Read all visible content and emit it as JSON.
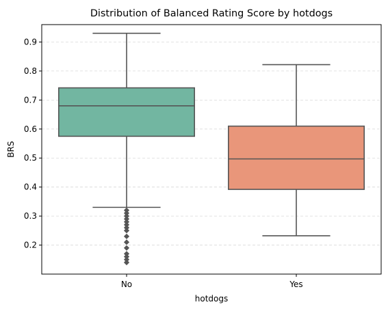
{
  "chart_data": {
    "type": "box",
    "title": "Distribution of Balanced Rating Score by hotdogs",
    "xlabel": "hotdogs",
    "ylabel": "BRS",
    "categories": [
      "No",
      "Yes"
    ],
    "ylim": [
      0.1,
      0.96
    ],
    "yticks": [
      0.2,
      0.3,
      0.4,
      0.5,
      0.6,
      0.7,
      0.8,
      0.9
    ],
    "ytick_labels": [
      "0.2",
      "0.3",
      "0.4",
      "0.5",
      "0.6",
      "0.7",
      "0.8",
      "0.9"
    ],
    "grid": "horizontal dashed",
    "boxes": [
      {
        "category": "No",
        "color": "#72b6a1",
        "whisker_low": 0.33,
        "q1": 0.575,
        "median": 0.68,
        "q3": 0.742,
        "whisker_high": 0.93,
        "outliers": [
          0.32,
          0.31,
          0.3,
          0.29,
          0.28,
          0.27,
          0.26,
          0.25,
          0.23,
          0.21,
          0.19,
          0.17,
          0.16,
          0.15,
          0.14
        ]
      },
      {
        "category": "Yes",
        "color": "#e9967a",
        "whisker_low": 0.232,
        "q1": 0.392,
        "median": 0.497,
        "q3": 0.61,
        "whisker_high": 0.822,
        "outliers": []
      }
    ]
  }
}
